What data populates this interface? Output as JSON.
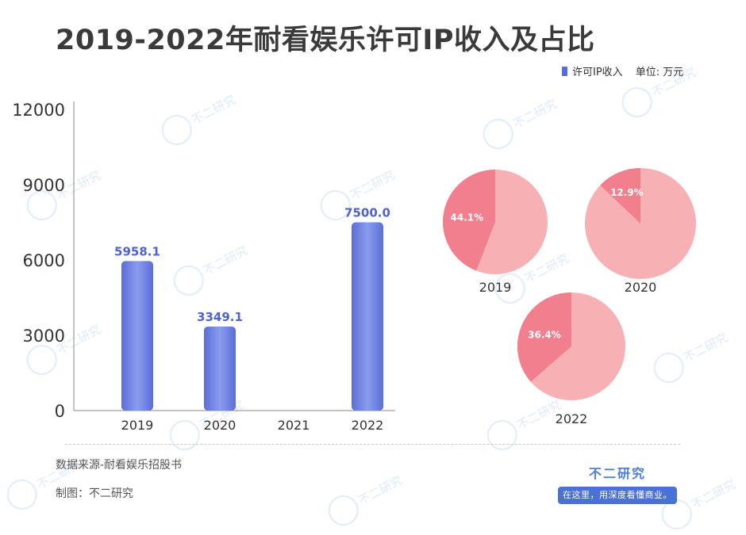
{
  "title": "2019-2022年耐看娱乐许可IP收入及占比",
  "legend": {
    "label": "许可IP收入",
    "unit": "单位: 万元"
  },
  "colors": {
    "bar": "#5a6ed8",
    "bar_highlight": "#8a9cec",
    "bar_label": "#4e63d0",
    "pie_base": "#f7b0b4",
    "pie_slice": "#f27f8e",
    "axis": "#888888"
  },
  "chart_data": [
    {
      "type": "bar",
      "categories": [
        "2019",
        "2020",
        "2021",
        "2022"
      ],
      "series": [
        {
          "name": "许可IP收入",
          "values": [
            5958.1,
            3349.1,
            null,
            7500.0
          ]
        }
      ],
      "value_labels": [
        "5958.1",
        "3349.1",
        "",
        "7500.0"
      ],
      "y_ticks": [
        "0",
        "3000",
        "6000",
        "9000",
        "12000"
      ],
      "ylim": [
        0,
        12000
      ],
      "grid": false,
      "legend_position": "top-right"
    },
    {
      "type": "pie",
      "pies": [
        {
          "label": "2019",
          "share": 44.1,
          "share_label": "44.1%"
        },
        {
          "label": "2020",
          "share": 12.9,
          "share_label": "12.9%"
        },
        {
          "label": "2022",
          "share": 36.4,
          "share_label": "36.4%"
        }
      ]
    }
  ],
  "footer": {
    "source": "数据来源-耐看娱乐招股书",
    "maker": "制图：不二研究",
    "brand_name": "不二研究",
    "brand_slogan": "在这里，用深度看懂商业。"
  },
  "watermark_text": "不二研究"
}
